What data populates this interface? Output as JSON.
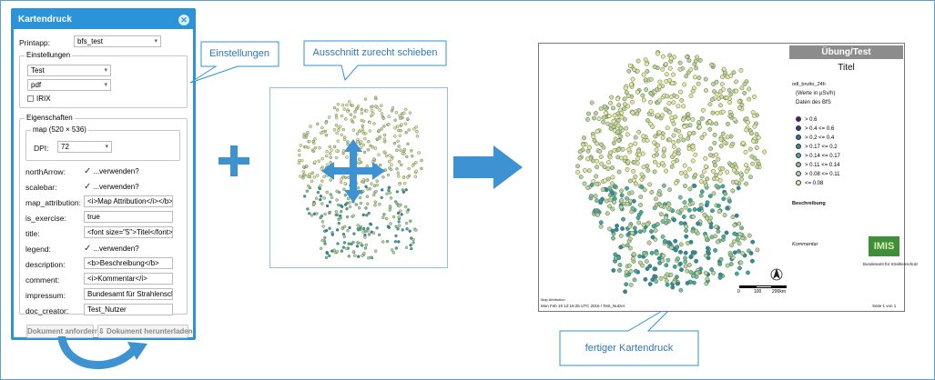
{
  "dialog": {
    "title": "Kartendruck",
    "printapp_label": "Printapp:",
    "printapp_value": "bfs_test",
    "einstellungen": {
      "legend": "Einstellungen",
      "layout_value": "Test",
      "format_value": "pdf",
      "irix_label": "IRIX"
    },
    "eigenschaften": {
      "legend": "Eigenschaften",
      "map_legend": "map (520 × 536)",
      "dpi_label": "DPI:",
      "dpi_value": "72",
      "rows": [
        {
          "label": "northArrow:",
          "type": "check",
          "value": "...verwenden?"
        },
        {
          "label": "scalebar:",
          "type": "check",
          "value": "...verwenden?"
        },
        {
          "label": "map_attribution:",
          "type": "text",
          "value": "<i>Map Attribution</i></b>"
        },
        {
          "label": "is_exercise:",
          "type": "text",
          "value": "true"
        },
        {
          "label": "title:",
          "type": "text",
          "value": "<font size=\"5\">Titel</font>"
        },
        {
          "label": "legend:",
          "type": "check",
          "value": "...verwenden?"
        },
        {
          "label": "description:",
          "type": "text",
          "value": "<b>Beschreibung</b>"
        },
        {
          "label": "comment:",
          "type": "text",
          "value": "<i>Kommentar</i>"
        },
        {
          "label": "impressum:",
          "type": "text",
          "value": "Bundesamt für Strahlensch"
        },
        {
          "label": "doc_creator:",
          "type": "text",
          "value": "Test_Nutzer"
        }
      ]
    },
    "btn_request": "Dokument anfordern",
    "btn_download": "Dokument herunterladen"
  },
  "callouts": {
    "einstellungen": "Einstellungen",
    "ausschnitt": "Ausschnitt zurecht schieben",
    "fertig": "fertiger Kartendruck"
  },
  "plus_symbol": "+",
  "final_map": {
    "header": "Übung/Test",
    "title": "Titel",
    "layer": "odl_brutto_24h",
    "unit": "(Werte in µSv/h)",
    "source": "Daten des BfS",
    "legend": [
      {
        "label": "> 0.6",
        "color": "#5a1a6e"
      },
      {
        "label": "> 0.4 <= 0.6",
        "color": "#2c3f8e"
      },
      {
        "label": "> 0.2 <= 0.4",
        "color": "#2c6ea0"
      },
      {
        "label": "> 0.17 <= 0.2",
        "color": "#2b8aa8"
      },
      {
        "label": "> 0.14 <= 0.17",
        "color": "#3ea8a6"
      },
      {
        "label": "> 0.11 <= 0.14",
        "color": "#78c0a0"
      },
      {
        "label": "> 0.08 <= 0.11",
        "color": "#b8d49c"
      },
      {
        "label": "<= 0.08",
        "color": "#e8e6a0"
      }
    ],
    "beschreibung": "Beschreibung",
    "kommentar": "Kommentar",
    "logo_text": "IMIS",
    "bfs_text": "Bundesamt für Strahlenschutz",
    "scale_ticks": [
      "0",
      "100",
      "200km"
    ],
    "attribution": "Map Attribution",
    "footer_left": "Mon Feb 15 12:15:25 UTC 2016 / Test_Nutzer",
    "footer_right": "Seite 1 von 1"
  }
}
